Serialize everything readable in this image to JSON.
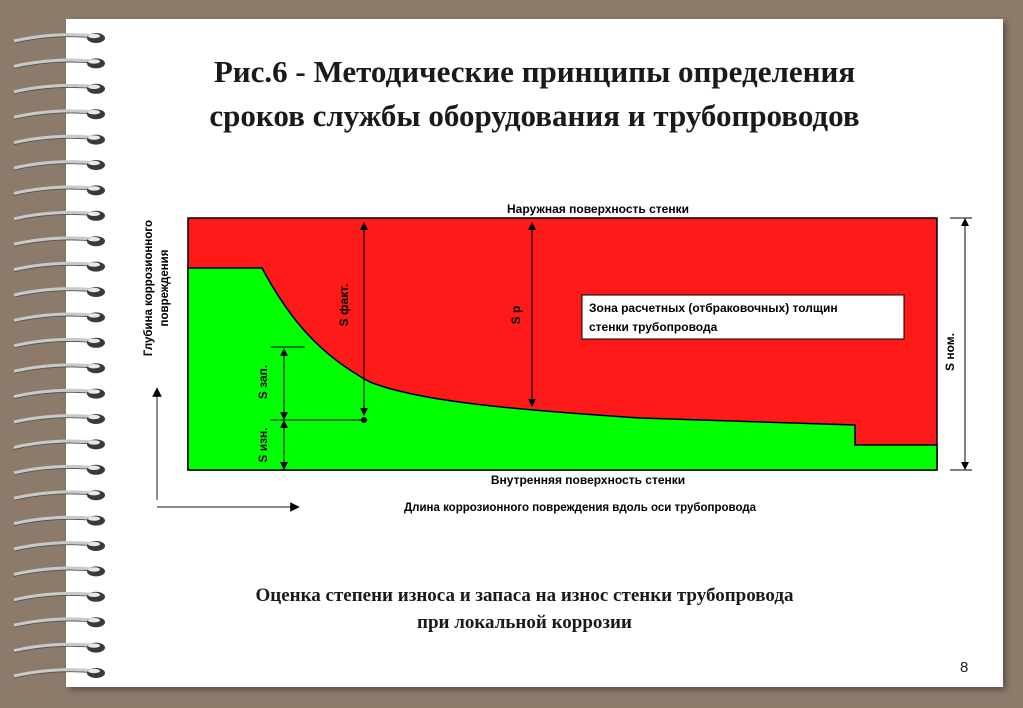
{
  "slide": {
    "title_line1": "Рис.6 - Методические принципы определения",
    "title_line2": "сроков службы оборудования и трубопроводов",
    "caption_line1": "Оценка степени износа и запаса на износ стенки трубопровода",
    "caption_line2": "при локальной коррозии",
    "page_number": "8"
  },
  "diagram": {
    "outer_surface_label": "Наружная поверхность стенки",
    "inner_surface_label": "Внутренняя поверхность стенки",
    "x_axis_label": "Длина коррозионного повреждения вдоль оси трубопровода",
    "y_axis_label_line1": "Глубина коррозионного",
    "y_axis_label_line2": "повреждения",
    "zone_label_line1": "Зона расчетных (отбраковочных) толщин",
    "zone_label_line2": "стенки трубопровода",
    "s_fact_label": "S факт.",
    "s_r_label": "S р",
    "s_zap_label": "S зап.",
    "s_izn_label": "S изн.",
    "s_nom_label": "S ном."
  },
  "colors": {
    "background": "#8c7b6b",
    "page": "#ffffff",
    "damage_zone": "#ff1a1a",
    "remaining_wall": "#00ff00",
    "outline": "#000000"
  },
  "icons": {
    "binding": "spiral-binding-icon"
  }
}
